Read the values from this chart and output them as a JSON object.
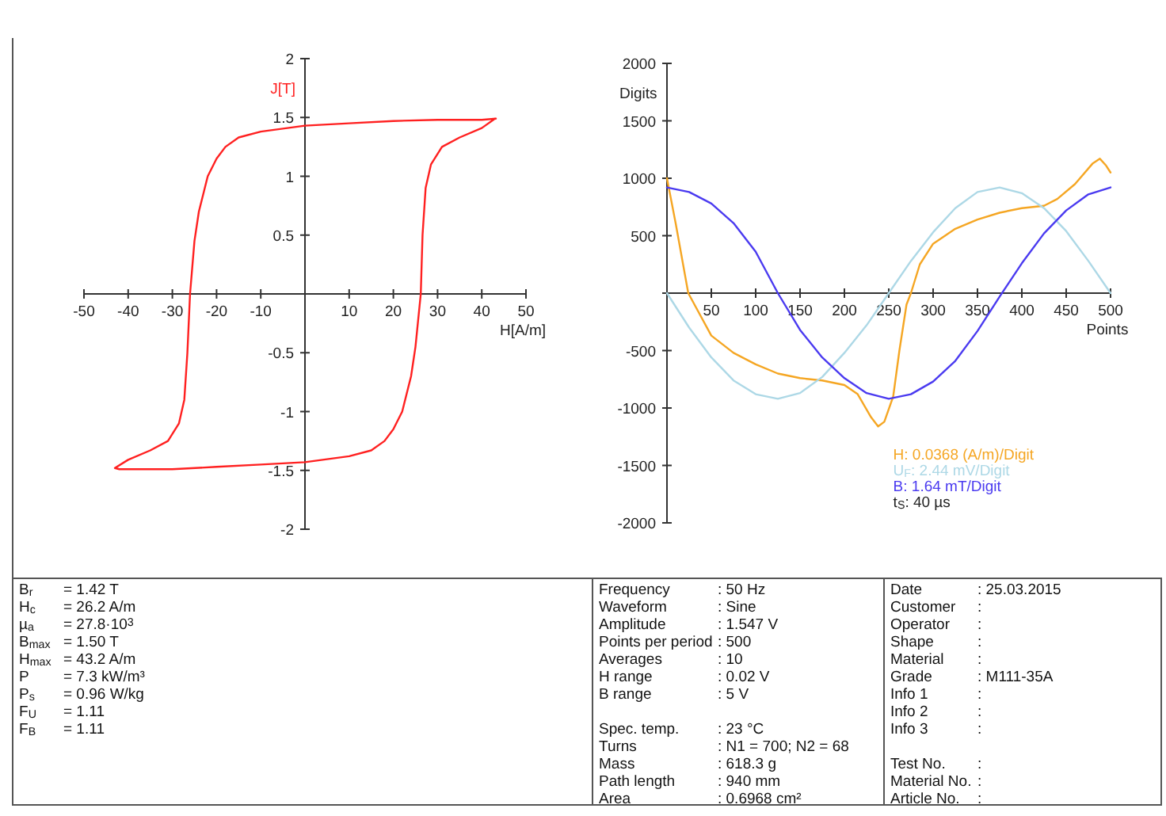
{
  "chart_data": [
    {
      "type": "line",
      "xlabel": "H[A/m]",
      "ylabel": "J[T]",
      "xlim": [
        -50,
        50
      ],
      "ylim": [
        -2,
        2
      ],
      "xticks": [
        -50,
        -40,
        -30,
        -20,
        -10,
        10,
        20,
        30,
        40,
        50
      ],
      "yticks": [
        -2,
        -1.5,
        -1,
        -0.5,
        0.5,
        1,
        1.5,
        2
      ],
      "grid": false,
      "legend": false,
      "marker": "none",
      "line_style": "solid",
      "series": [
        {
          "color": "#ff2020",
          "x": [
            43.2,
            40,
            30,
            20,
            10,
            0,
            -10,
            -15,
            -18,
            -20,
            -22,
            -24,
            -25,
            -26,
            -26.6,
            -27.3,
            -28.5,
            -31,
            -35,
            -40,
            -43,
            -42,
            -30,
            -20,
            -10,
            0,
            10,
            15,
            18,
            20,
            22,
            24,
            25,
            26.2,
            26.6,
            27.3,
            28.5,
            31,
            35,
            40,
            43
          ],
          "values": [
            1.49,
            1.48,
            1.48,
            1.47,
            1.45,
            1.43,
            1.38,
            1.33,
            1.25,
            1.15,
            1.0,
            0.7,
            0.45,
            0,
            -0.5,
            -0.9,
            -1.1,
            -1.25,
            -1.33,
            -1.41,
            -1.48,
            -1.49,
            -1.49,
            -1.47,
            -1.45,
            -1.43,
            -1.38,
            -1.33,
            -1.25,
            -1.15,
            -1.0,
            -0.7,
            -0.45,
            0,
            0.5,
            0.9,
            1.1,
            1.25,
            1.33,
            1.41,
            1.49
          ]
        }
      ]
    },
    {
      "type": "line",
      "xlabel": "Points",
      "ylabel": "Digits",
      "xlim": [
        0,
        500
      ],
      "ylim": [
        -2000,
        2000
      ],
      "xticks": [
        50,
        100,
        150,
        200,
        250,
        300,
        350,
        400,
        450,
        500
      ],
      "yticks": [
        -2000,
        -1500,
        -1000,
        -500,
        {
          "value": 0,
          "label": null
        },
        500,
        1000,
        1500,
        2000
      ],
      "grid": false,
      "legend": "bottom",
      "marker": "none",
      "line_style": "solid",
      "annotations": [
        "t$_{S}$: 40 µs"
      ],
      "series": [
        {
          "name": "H:  0.0368 (A/m)/Digit",
          "color": "#f5a623",
          "x": [
            0,
            10,
            24,
            50,
            75,
            100,
            125,
            150,
            175,
            200,
            215,
            230,
            238,
            245,
            255,
            262,
            270,
            275,
            285,
            300,
            325,
            350,
            375,
            400,
            425,
            440,
            460,
            480,
            488,
            495,
            500
          ],
          "values": [
            1000,
            600,
            0,
            -370,
            -520,
            -620,
            -700,
            -740,
            -760,
            -800,
            -880,
            -1080,
            -1160,
            -1120,
            -900,
            -500,
            -100,
            0,
            250,
            430,
            560,
            640,
            700,
            740,
            760,
            820,
            950,
            1130,
            1170,
            1110,
            1050
          ]
        },
        {
          "name": "U$_{F}$:  2.44 mV/Digit",
          "color": "#add8e6",
          "x": [
            0,
            25,
            50,
            75,
            100,
            125,
            150,
            175,
            200,
            225,
            250,
            275,
            300,
            325,
            350,
            375,
            400,
            425,
            450,
            475,
            500
          ],
          "values": [
            0,
            -300,
            -560,
            -760,
            -880,
            -920,
            -870,
            -730,
            -520,
            -280,
            0,
            280,
            530,
            740,
            880,
            920,
            870,
            740,
            540,
            280,
            0
          ]
        },
        {
          "name": "B:  1.64 mT/Digit",
          "color": "#4a3af0",
          "x": [
            0,
            25,
            50,
            75,
            100,
            125,
            150,
            175,
            200,
            225,
            250,
            275,
            300,
            325,
            350,
            375,
            400,
            425,
            450,
            475,
            500
          ],
          "values": [
            920,
            880,
            780,
            610,
            360,
            0,
            -320,
            -560,
            -740,
            -870,
            -920,
            -880,
            -770,
            -590,
            -330,
            -30,
            260,
            520,
            720,
            860,
            920
          ]
        }
      ]
    },
    {
      "type": "other",
      "annotations": [
        "B$_{r}$\t= 1.42  T",
        "H$_{c}$\t= 26.2  A/m",
        "µ$_{a}$\t= 27.8·10$^{3}$",
        "B$_{max}$\t= 1.50  T",
        "H$_{max}$\t= 43.2  A/m",
        "P\t= 7.3    kW/m³",
        "P$_{s}$\t= 0.96  W/kg",
        "F$_{U}$\t= 1.11",
        "F$_{B}$\t= 1.11",
        "Frequency\t: 50 Hz",
        "Waveform\t: Sine",
        "Amplitude\t: 1.547 V",
        "Points per period\t: 500",
        "Averages\t: 10",
        "H range\t: 0.02 V",
        "B range\t: 5 V",
        "Spec. temp.\t: 23 °C",
        "Turns\t: N1 = 700; N2 = 68",
        "Mass\t: 618.3 g",
        "Path length\t: 940 mm",
        "Area\t: 0.6968 cm²",
        "Date\t: 25.03.2015",
        "Customer\t:",
        "Operator\t:",
        "Shape\t:",
        "Material\t:",
        "Grade\t: M111-35A",
        "Info 1\t:",
        "Info 2\t:",
        "Info 3\t:",
        "Test No.\t:",
        "Material No.\t:",
        "Article No.\t:"
      ]
    }
  ]
}
